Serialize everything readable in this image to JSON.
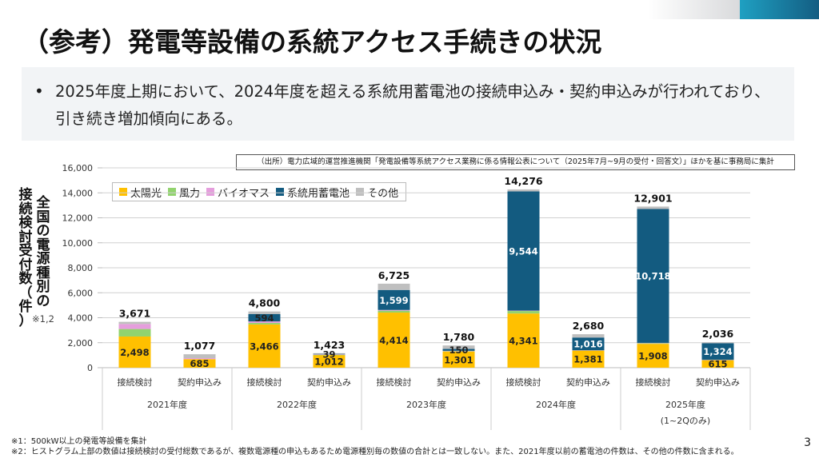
{
  "page": {
    "title": "（参考）発電等設備の系統アクセス手続きの状況",
    "summary_bullet": "•",
    "summary_text": "2025年度上期において、2024年度を超える系統用蓄電池の接続申込み・契約申込みが行われており、引き続き増加傾向にある。",
    "source_note": "（出所）電力広域的運営推進機関「発電設備等系統アクセス業務に係る情報公表について（2025年7月~9月の受付・回答文）」ほかを基に事務局に集計",
    "ylabel_col1": "接続検討受付数（件）",
    "ylabel_col2": "全国の電源種別の",
    "ylabel_note": "※1,2",
    "footnotes": [
      "※1：500kW以上の発電等設備を集計",
      "※2：ヒストグラム上部の数値は接続検討の受付総数であるが、複数電源種の申込もあるため電源種別毎の数値の合計とは一致しない。また、2021年度以前の蓄電池の件数は、その他の件数に含まれる。"
    ],
    "page_number": "3"
  },
  "chart_data": {
    "type": "bar",
    "stacked": true,
    "title": "",
    "xlabel": "",
    "ylabel": "全国の電源種別の接続検討受付数（件）",
    "ylim": [
      0,
      16000
    ],
    "yticks": [
      0,
      2000,
      4000,
      6000,
      8000,
      10000,
      12000,
      14000,
      16000
    ],
    "ytick_labels": [
      "0",
      "2,000",
      "4,000",
      "6,000",
      "8,000",
      "10,000",
      "12,000",
      "14,000",
      "16,000"
    ],
    "grid": true,
    "legend_position": "top-left",
    "groups": [
      {
        "label": "2021年度",
        "sublabel": ""
      },
      {
        "label": "2022年度",
        "sublabel": ""
      },
      {
        "label": "2023年度",
        "sublabel": ""
      },
      {
        "label": "2024年度",
        "sublabel": ""
      },
      {
        "label": "2025年度",
        "sublabel": "(1~2Qのみ)"
      }
    ],
    "categories": [
      "接続検討",
      "契約申込み",
      "接続検討",
      "契約申込み",
      "接続検討",
      "契約申込み",
      "接続検討",
      "契約申込み",
      "接続検討",
      "契約申込み"
    ],
    "series": [
      {
        "name": "太陽光",
        "color": "#ffc000",
        "values": [
          2498,
          685,
          3466,
          1012,
          4414,
          1301,
          4341,
          1381,
          1908,
          615
        ]
      },
      {
        "name": "風力",
        "color": "#92d36e",
        "values": [
          600,
          0,
          120,
          20,
          150,
          20,
          200,
          10,
          60,
          10
        ]
      },
      {
        "name": "バイオマス",
        "color": "#e59edd",
        "values": [
          400,
          80,
          120,
          40,
          60,
          30,
          30,
          10,
          20,
          10
        ]
      },
      {
        "name": "系統用蓄電池",
        "color": "#135b80",
        "values": [
          0,
          0,
          594,
          39,
          1599,
          150,
          9544,
          1016,
          10718,
          1324
        ]
      },
      {
        "name": "その他",
        "color": "#bfbfbf",
        "values": [
          173,
          312,
          200,
          50,
          502,
          279,
          161,
          263,
          195,
          77
        ]
      }
    ],
    "totals": [
      3671,
      1077,
      4800,
      1423,
      6725,
      1780,
      14276,
      2680,
      12901,
      2036
    ],
    "data_labels": [
      {
        "bar": 0,
        "series": "太陽光",
        "text": "2,498"
      },
      {
        "bar": 1,
        "series": "太陽光",
        "text": "685"
      },
      {
        "bar": 2,
        "series": "太陽光",
        "text": "3,466"
      },
      {
        "bar": 2,
        "series": "系統用蓄電池",
        "text": "594"
      },
      {
        "bar": 3,
        "series": "太陽光",
        "text": "1,012"
      },
      {
        "bar": 3,
        "series": "系統用蓄電池",
        "text": "39"
      },
      {
        "bar": 4,
        "series": "太陽光",
        "text": "4,414"
      },
      {
        "bar": 4,
        "series": "系統用蓄電池",
        "text": "1,599"
      },
      {
        "bar": 5,
        "series": "太陽光",
        "text": "1,301"
      },
      {
        "bar": 5,
        "series": "系統用蓄電池",
        "text": "150"
      },
      {
        "bar": 6,
        "series": "太陽光",
        "text": "4,341"
      },
      {
        "bar": 6,
        "series": "系統用蓄電池",
        "text": "9,544"
      },
      {
        "bar": 7,
        "series": "太陽光",
        "text": "1,381"
      },
      {
        "bar": 7,
        "series": "系統用蓄電池",
        "text": "1,016"
      },
      {
        "bar": 8,
        "series": "太陽光",
        "text": "1,908"
      },
      {
        "bar": 8,
        "series": "系統用蓄電池",
        "text": "10,718"
      },
      {
        "bar": 9,
        "series": "太陽光",
        "text": "615"
      },
      {
        "bar": 9,
        "series": "系統用蓄電池",
        "text": "1,324"
      }
    ],
    "total_labels": [
      "3,671",
      "1,077",
      "4,800",
      "1,423",
      "6,725",
      "1,780",
      "14,276",
      "2,680",
      "12,901",
      "2,036"
    ]
  }
}
